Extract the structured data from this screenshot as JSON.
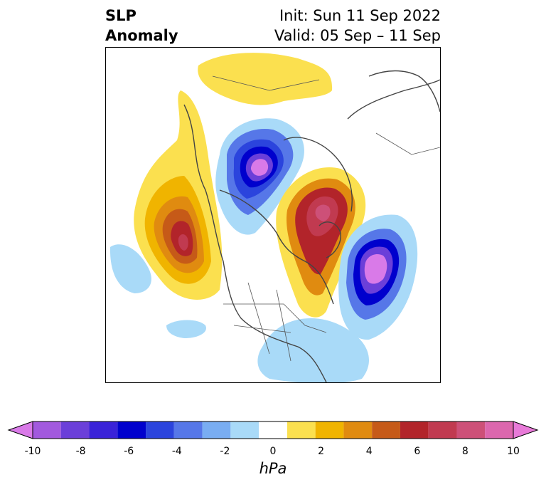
{
  "title": {
    "left_line1": "SLP",
    "left_line2": "Anomaly",
    "right_line1": "Init: Sun 11 Sep 2022",
    "right_line2": "Valid: 05 Sep – 11 Sep"
  },
  "colorbar": {
    "unit": "hPa",
    "ticks": [
      "-10",
      "-8",
      "-6",
      "-4",
      "-2",
      "0",
      "2",
      "4",
      "6",
      "8",
      "10"
    ],
    "colors": [
      "#d97ae8",
      "#a259de",
      "#6b3fd9",
      "#3a22d8",
      "#0000cd",
      "#2b44dd",
      "#5677e8",
      "#79adf2",
      "#a9daf8",
      "#ffffff",
      "#fbe04f",
      "#f0b400",
      "#e08b10",
      "#c65a18",
      "#b2242a",
      "#c13a50",
      "#cd5078",
      "#dc67ae",
      "#e87ad8"
    ]
  },
  "map": {
    "projection": "polar-stereographic",
    "region": "Northern Hemisphere (North America / Arctic / North Atlantic)"
  }
}
